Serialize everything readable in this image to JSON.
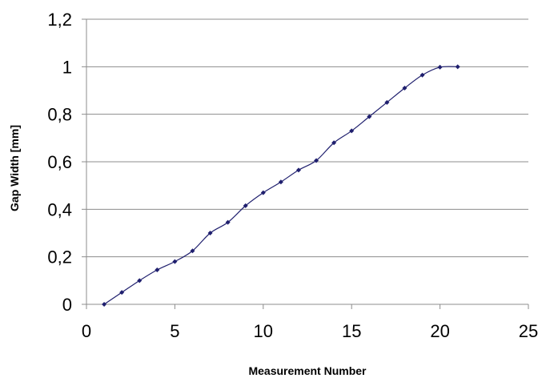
{
  "chart_data": {
    "type": "line",
    "title": "",
    "xlabel": "Measurement Number",
    "ylabel": "Gap Width [mm]",
    "xlim": [
      0,
      25
    ],
    "ylim": [
      0,
      1.2
    ],
    "x_ticks": [
      0,
      5,
      10,
      15,
      20,
      25
    ],
    "y_ticks": [
      0,
      0.2,
      0.4,
      0.6,
      0.8,
      1,
      1.2
    ],
    "x_tick_labels": [
      "0",
      "5",
      "10",
      "15",
      "20",
      "25"
    ],
    "y_tick_labels": [
      "0",
      "0,2",
      "0,4",
      "0,6",
      "0,8",
      "1",
      "1,2"
    ],
    "grid": "horizontal",
    "legend": "none",
    "series_color": "#1f1f6e",
    "series": [
      {
        "x": [
          1,
          2,
          3,
          4,
          5,
          6,
          7,
          8,
          9,
          10,
          11,
          12,
          13,
          14,
          15,
          16,
          17,
          18,
          19,
          20,
          21
        ],
        "values": [
          0,
          0.05,
          0.1,
          0.145,
          0.18,
          0.225,
          0.3,
          0.345,
          0.415,
          0.47,
          0.515,
          0.565,
          0.605,
          0.68,
          0.73,
          0.79,
          0.85,
          0.91,
          0.965,
          0.998,
          1.0
        ]
      }
    ]
  }
}
